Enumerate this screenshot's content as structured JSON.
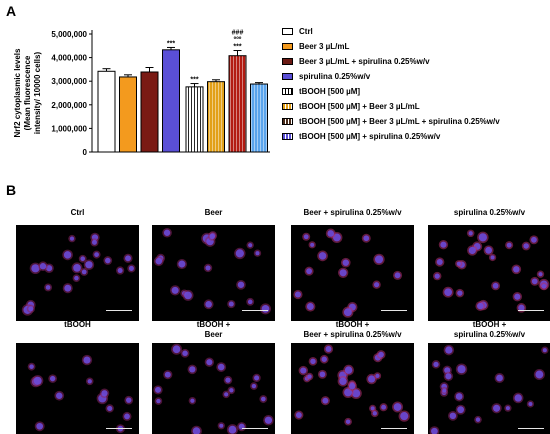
{
  "panel_a_label": "A",
  "panel_b_label": "B",
  "chart_data": {
    "type": "bar",
    "ylabel": "Nrf2 cytoplasmic levels (Mean fluorescence intensity/ 10000 cells)",
    "ylabel_lines": [
      "Nrf2 cytoplasmic levels",
      "(Mean fluorescence",
      "intensity/ 10000 cells)"
    ],
    "ylim": [
      0,
      5000000
    ],
    "yticks": [
      "0",
      "1,000,000",
      "2,000,000",
      "3,000,000",
      "4,000,000",
      "5,000,000"
    ],
    "grid": false,
    "legend_position": "right",
    "categories": [
      "Ctrl",
      "Beer 3 µL/mL",
      "Beer 3 µL/mL + spirulina 0.25%w/v",
      "spirulina 0.25%w/v",
      "tBOOH [500 µM]",
      "tBOOH [500 µM] + Beer 3 µL/mL",
      "tBOOH [500 µM] + Beer 3 µL/mL + spirulina 0.25%w/v",
      "tBOOH [500 µM] + spirulina 0.25%w/v"
    ],
    "values": [
      3420000,
      3180000,
      3390000,
      4330000,
      2760000,
      2980000,
      4080000,
      2880000
    ],
    "errors": [
      110000,
      90000,
      190000,
      100000,
      140000,
      80000,
      220000,
      60000
    ],
    "annotations": [
      {
        "bar": 3,
        "text": "***"
      },
      {
        "bar": 4,
        "text": "***"
      },
      {
        "bar": 6,
        "text": "###"
      },
      {
        "bar": 6,
        "text": "ººº"
      },
      {
        "bar": 6,
        "text": "***"
      }
    ],
    "colors": [
      "#ffffff",
      "#f39a1e",
      "#7a1a14",
      "#5a4fd6",
      "#ffffff",
      "#e2a019",
      "#b31b12",
      "#5aa4ec"
    ],
    "patterns": [
      "none",
      "none",
      "none",
      "none",
      "vstripe",
      "vstripe",
      "vstripe",
      "vstripe"
    ]
  },
  "legend": [
    {
      "label": "Ctrl",
      "color": "#ffffff",
      "pattern": "none"
    },
    {
      "label": "Beer 3 µL/mL",
      "color": "#f39a1e",
      "pattern": "none"
    },
    {
      "label": "Beer 3 µL/mL + spirulina 0.25%w/v",
      "color": "#6b1a14",
      "pattern": "none"
    },
    {
      "label": "spirulina 0.25%w/v",
      "color": "#5a4fd6",
      "pattern": "none"
    },
    {
      "label": "tBOOH [500 µM]",
      "color": "#ffffff",
      "pattern": "vstripe"
    },
    {
      "label": "tBOOH [500 µM] + Beer 3 µL/mL",
      "color": "#e2a019",
      "pattern": "vstripe"
    },
    {
      "label": "tBOOH [500 µM] + Beer 3 µL/mL + spirulina 0.25%w/v",
      "color": "#4a2a18",
      "pattern": "vstripe"
    },
    {
      "label": "tBOOH [500 µM] + spirulina 0.25%w/v",
      "color": "#5a4fd6",
      "pattern": "vstripe"
    }
  ],
  "micrographs": [
    {
      "label": "Ctrl"
    },
    {
      "label": "Beer"
    },
    {
      "label": "Beer + spirulina 0.25%w/v"
    },
    {
      "label": "spirulina 0.25%w/v"
    },
    {
      "label": "tBOOH"
    },
    {
      "label": "tBOOH +\nBeer"
    },
    {
      "label": "tBOOH +\nBeer + spirulina 0.25%w/v"
    },
    {
      "label": "tBOOH +\nspirulina 0.25%w/v"
    }
  ]
}
